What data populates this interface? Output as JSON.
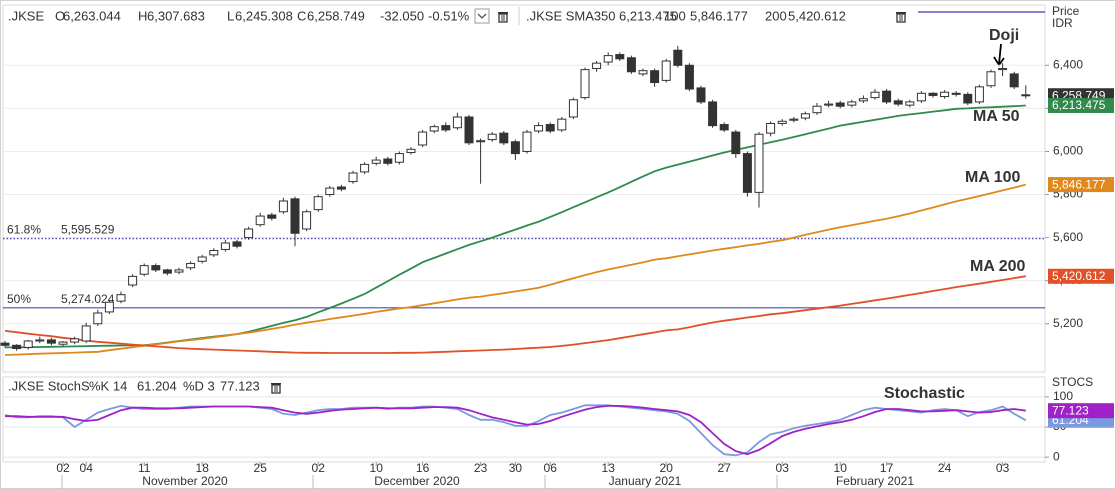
{
  "header": {
    "symbol": ".JKSE",
    "open_label": "O",
    "open": "6,263.044",
    "high_label": "H",
    "high": "6,307.683",
    "low_label": "L",
    "low": "6,245.308",
    "close_label": "C",
    "close": "6,258.749",
    "change": "-32.050",
    "change_pct": "-0.51%",
    "sma_label": ".JKSE SMA3"
  },
  "chart_data": [
    {
      "type": "candlestick",
      "y_axis_label": "Price",
      "y_axis_unit": "IDR",
      "categories": [
        null,
        null,
        null,
        null,
        null,
        "02",
        null,
        "04",
        null,
        null,
        null,
        null,
        "11",
        null,
        null,
        null,
        null,
        "18",
        null,
        null,
        null,
        null,
        "25",
        null,
        null,
        null,
        null,
        "02",
        null,
        null,
        null,
        null,
        "10",
        null,
        null,
        null,
        "16",
        null,
        null,
        null,
        null,
        "23",
        null,
        null,
        "30",
        null,
        null,
        "06",
        null,
        null,
        null,
        null,
        "13",
        null,
        null,
        null,
        null,
        "20",
        null,
        null,
        null,
        null,
        "27",
        null,
        null,
        null,
        null,
        "03",
        null,
        null,
        null,
        null,
        "10",
        null,
        null,
        null,
        "17",
        null,
        null,
        null,
        null,
        "24",
        null,
        null,
        null,
        null,
        "03",
        null,
        null
      ],
      "x_groups": [
        "November 2020",
        "December 2020",
        "January 2021",
        "February 2021"
      ],
      "open": [
        5110,
        5100,
        5090,
        5120,
        5125,
        5105,
        5115,
        5120,
        5200,
        5255,
        5305,
        5380,
        5430,
        5470,
        5450,
        5440,
        5460,
        5490,
        5520,
        5545,
        5580,
        5600,
        5660,
        5705,
        5720,
        5780,
        5640,
        5730,
        5800,
        5835,
        5860,
        5905,
        5945,
        5965,
        5950,
        5995,
        6030,
        6095,
        6120,
        6110,
        6160,
        6045,
        6055,
        6085,
        6045,
        6000,
        6095,
        6125,
        6100,
        6160,
        6250,
        6385,
        6415,
        6450,
        6435,
        6360,
        6375,
        6330,
        6470,
        6400,
        6295,
        6230,
        6125,
        6090,
        5990,
        5810,
        6085,
        6130,
        6145,
        6155,
        6180,
        6215,
        6225,
        6215,
        6235,
        6250,
        6280,
        6235,
        6215,
        6235,
        6270,
        6255,
        6270,
        6265,
        6230,
        6305,
        6380,
        6360,
        6263.044
      ],
      "high": [
        5120,
        5105,
        5125,
        5140,
        5135,
        5120,
        5140,
        5205,
        5265,
        5310,
        5350,
        5430,
        5480,
        5480,
        5455,
        5460,
        5490,
        5520,
        5550,
        5590,
        5590,
        5650,
        5715,
        5715,
        5785,
        5790,
        5730,
        5800,
        5840,
        5845,
        5910,
        5950,
        5975,
        5975,
        6000,
        6020,
        6100,
        6125,
        6135,
        6180,
        6170,
        6060,
        6090,
        6095,
        6055,
        6100,
        6135,
        6135,
        6160,
        6250,
        6390,
        6420,
        6460,
        6460,
        6445,
        6385,
        6385,
        6430,
        6490,
        6410,
        6305,
        6240,
        6135,
        6100,
        6000,
        6090,
        6140,
        6150,
        6160,
        6185,
        6225,
        6235,
        6235,
        6240,
        6260,
        6290,
        6290,
        6245,
        6240,
        6280,
        6275,
        6285,
        6280,
        6275,
        6310,
        6380,
        6410,
        6370,
        6307.683
      ],
      "low": [
        5090,
        5075,
        5080,
        5110,
        5100,
        5095,
        5105,
        5110,
        5190,
        5245,
        5295,
        5370,
        5420,
        5440,
        5425,
        5430,
        5450,
        5480,
        5510,
        5535,
        5550,
        5590,
        5650,
        5680,
        5710,
        5560,
        5630,
        5720,
        5790,
        5815,
        5850,
        5895,
        5935,
        5935,
        5940,
        5985,
        6020,
        6085,
        6090,
        6100,
        6030,
        5850,
        6045,
        6030,
        5960,
        5990,
        6085,
        6085,
        6090,
        6150,
        6240,
        6370,
        6400,
        6420,
        6360,
        6350,
        6300,
        6320,
        6390,
        6280,
        6220,
        6110,
        6090,
        5970,
        5790,
        5740,
        6070,
        6120,
        6135,
        6145,
        6170,
        6205,
        6200,
        6205,
        6225,
        6240,
        6220,
        6210,
        6205,
        6225,
        6250,
        6245,
        6255,
        6215,
        6220,
        6295,
        6350,
        6290,
        6245.308
      ],
      "close": [
        5100,
        5085,
        5120,
        5125,
        5110,
        5115,
        5130,
        5190,
        5250,
        5300,
        5335,
        5420,
        5470,
        5450,
        5435,
        5450,
        5480,
        5510,
        5540,
        5575,
        5560,
        5640,
        5700,
        5690,
        5770,
        5620,
        5720,
        5790,
        5830,
        5825,
        5900,
        5940,
        5960,
        5945,
        5990,
        6010,
        6090,
        6115,
        6100,
        6160,
        6040,
        6050,
        6080,
        6040,
        5990,
        6090,
        6120,
        6095,
        6150,
        6240,
        6380,
        6410,
        6445,
        6430,
        6370,
        6375,
        6320,
        6420,
        6400,
        6290,
        6230,
        6120,
        6100,
        5990,
        5810,
        6080,
        6130,
        6140,
        6150,
        6175,
        6210,
        6220,
        6210,
        6230,
        6245,
        6275,
        6230,
        6220,
        6230,
        6270,
        6260,
        6275,
        6265,
        6225,
        6300,
        6370,
        6385,
        6300,
        6258.749
      ],
      "close_label": "6,258.749",
      "up_color": "#ffffff",
      "down_color": "#333333",
      "candle_edge": "#333333",
      "lines": [
        {
          "name": "MA 50",
          "period": "50",
          "color": "#2f8a4c",
          "last_value_label": "6,213.475",
          "values": [
            5090,
            5090,
            5091,
            5092,
            5093,
            5094,
            5095,
            5096,
            5097,
            5098,
            5099,
            5100,
            5100,
            5106,
            5113,
            5120,
            5127,
            5134,
            5140,
            5146,
            5152,
            5163,
            5176,
            5190,
            5204,
            5216,
            5232,
            5253,
            5273,
            5294,
            5316,
            5338,
            5368,
            5398,
            5428,
            5456,
            5486,
            5506,
            5526,
            5546,
            5566,
            5583,
            5600,
            5619,
            5637,
            5656,
            5674,
            5696,
            5718,
            5741,
            5764,
            5787,
            5810,
            5834,
            5859,
            5884,
            5908,
            5925,
            5939,
            5953,
            5967,
            5981,
            5995,
            6007,
            6019,
            6031,
            6043,
            6054,
            6067,
            6080,
            6093,
            6106,
            6120,
            6129,
            6138,
            6147,
            6156,
            6165,
            6172,
            6178,
            6185,
            6191,
            6198,
            6200,
            6203,
            6205,
            6208,
            6210,
            6213.475
          ]
        },
        {
          "name": "MA 100",
          "period": "100",
          "color": "#e0881c",
          "last_value_label": "5,846.177",
          "values": [
            5055,
            5057,
            5059,
            5061,
            5063,
            5064,
            5066,
            5068,
            5070,
            5077,
            5084,
            5091,
            5098,
            5104,
            5111,
            5118,
            5124,
            5130,
            5137,
            5144,
            5152,
            5159,
            5167,
            5176,
            5185,
            5196,
            5205,
            5213,
            5222,
            5230,
            5238,
            5246,
            5255,
            5263,
            5271,
            5278,
            5286,
            5295,
            5304,
            5313,
            5321,
            5326,
            5334,
            5342,
            5350,
            5358,
            5367,
            5381,
            5396,
            5411,
            5426,
            5440,
            5452,
            5463,
            5474,
            5485,
            5498,
            5504,
            5513,
            5522,
            5531,
            5540,
            5548,
            5556,
            5564,
            5571,
            5580,
            5588,
            5600,
            5613,
            5625,
            5637,
            5648,
            5658,
            5668,
            5678,
            5688,
            5699,
            5712,
            5726,
            5740,
            5754,
            5768,
            5780,
            5793,
            5806,
            5819,
            5832,
            5846.177
          ]
        },
        {
          "name": "MA 200",
          "period": "200",
          "color": "#e0512a",
          "last_value_label": "5,420.612",
          "values": [
            5167,
            5161,
            5154,
            5148,
            5142,
            5135,
            5129,
            5122,
            5116,
            5112,
            5108,
            5103,
            5099,
            5095,
            5091,
            5087,
            5084,
            5082,
            5080,
            5078,
            5076,
            5074,
            5072,
            5070,
            5068,
            5066,
            5065,
            5065,
            5064,
            5064,
            5064,
            5064,
            5064,
            5064,
            5065,
            5065,
            5066,
            5068,
            5070,
            5072,
            5074,
            5076,
            5078,
            5080,
            5083,
            5086,
            5089,
            5092,
            5097,
            5103,
            5110,
            5117,
            5124,
            5133,
            5142,
            5151,
            5160,
            5169,
            5174,
            5184,
            5195,
            5206,
            5214,
            5221,
            5229,
            5236,
            5244,
            5249,
            5256,
            5263,
            5270,
            5277,
            5284,
            5292,
            5300,
            5309,
            5317,
            5325,
            5334,
            5343,
            5352,
            5361,
            5370,
            5378,
            5386,
            5395,
            5403,
            5412,
            5420.612
          ]
        }
      ],
      "levels": [
        {
          "label": "61.8%",
          "value": 5595.529,
          "value_label": "5,595.529",
          "color": "#4b4bb0",
          "style": "dotted"
        },
        {
          "label": "50%",
          "value": 5274.024,
          "value_label": "5,274.024",
          "color": "#4b4bb0",
          "style": "solid"
        }
      ],
      "annotation": "Doji",
      "ylim": [
        4976,
        6680
      ],
      "yticks": [
        {
          "value": 5200,
          "label": "5,200"
        },
        {
          "value": 5400,
          "label": "5,400"
        },
        {
          "value": 5600,
          "label": "5,600"
        },
        {
          "value": 5800,
          "label": "5,800"
        },
        {
          "value": 6000,
          "label": "6,000"
        },
        {
          "value": 6200,
          "label": "6,200"
        },
        {
          "value": 6400,
          "label": "6,400"
        }
      ],
      "grid": true
    },
    {
      "type": "line",
      "title": "Stochastic",
      "indicator": ".JKSE StochS",
      "y_axis_label": "STOCS",
      "series": [
        {
          "name": "%K 14",
          "color": "#7a9ae0",
          "last_value_label": "61.204",
          "values": [
            70,
            66,
            66,
            68,
            68,
            66,
            50,
            62,
            74,
            80,
            85,
            82,
            80,
            80,
            80,
            82,
            84,
            84,
            84,
            84,
            84,
            84,
            82,
            80,
            72,
            70,
            74,
            78,
            80,
            80,
            82,
            82,
            82,
            80,
            82,
            82,
            84,
            84,
            82,
            80,
            70,
            62,
            62,
            58,
            52,
            52,
            60,
            70,
            74,
            80,
            86,
            86,
            86,
            84,
            82,
            80,
            78,
            76,
            72,
            60,
            40,
            20,
            5,
            3,
            8,
            25,
            38,
            42,
            48,
            52,
            55,
            58,
            62,
            70,
            78,
            82,
            80,
            78,
            76,
            74,
            78,
            80,
            78,
            68,
            75,
            78,
            84,
            72,
            61.204
          ]
        },
        {
          "name": "%D 3",
          "color": "#a020c8",
          "last_value_label": "77.123",
          "values": [
            68,
            68,
            67,
            67,
            67,
            67,
            63,
            60,
            62,
            70,
            78,
            82,
            82,
            81,
            81,
            81,
            82,
            83,
            84,
            84,
            84,
            84,
            83,
            82,
            78,
            74,
            72,
            74,
            77,
            79,
            80,
            81,
            82,
            81,
            81,
            81,
            82,
            83,
            83,
            82,
            78,
            72,
            66,
            62,
            58,
            54,
            55,
            60,
            67,
            73,
            79,
            83,
            85,
            85,
            84,
            82,
            80,
            78,
            76,
            70,
            58,
            40,
            22,
            10,
            5,
            12,
            23,
            35,
            42,
            47,
            51,
            55,
            58,
            62,
            68,
            75,
            80,
            80,
            78,
            76,
            76,
            77,
            78,
            76,
            74,
            75,
            78,
            80,
            77.123
          ]
        }
      ],
      "ylim": [
        -8,
        133
      ],
      "yticks": [
        0,
        50,
        100
      ],
      "grid": true
    }
  ]
}
